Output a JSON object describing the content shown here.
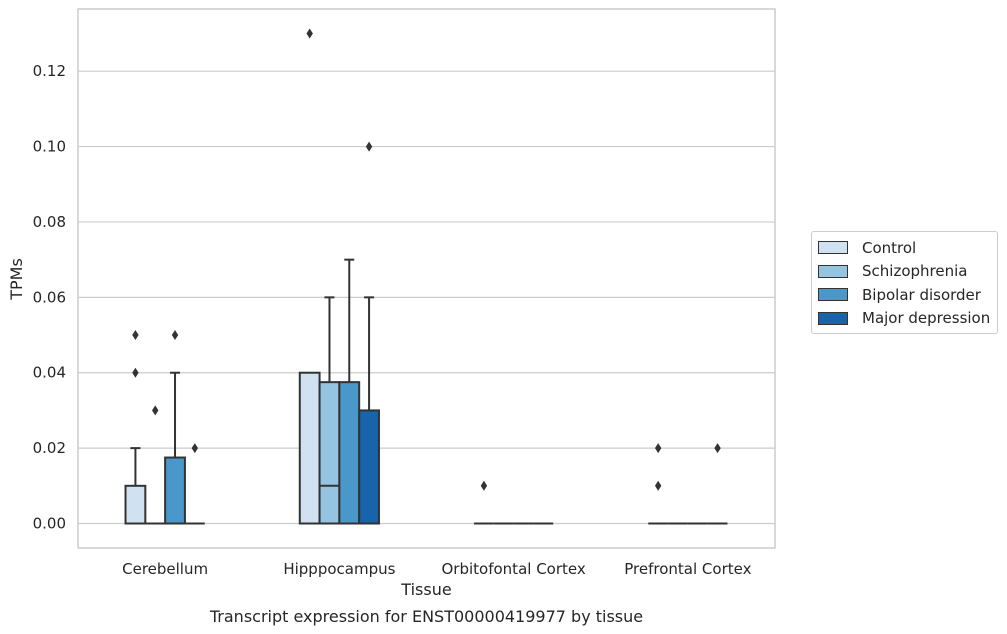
{
  "chart_data": {
    "type": "box",
    "caption": "Transcript expression for ENST00000419977 by tissue",
    "xlabel": "Tissue",
    "ylabel": "TPMs",
    "ylim": [
      -0.0065,
      0.1365
    ],
    "yticks": [
      0.0,
      0.02,
      0.04,
      0.06,
      0.08,
      0.1,
      0.12
    ],
    "ytick_labels": [
      "0.00",
      "0.02",
      "0.04",
      "0.06",
      "0.08",
      "0.10",
      "0.12"
    ],
    "categories": [
      "Cerebellum",
      "Hipppocampus",
      "Orbitofontal Cortex",
      "Prefrontal Cortex"
    ],
    "grid": "horizontal",
    "legend_position": "right",
    "series": [
      {
        "name": "Control",
        "color": "#d0e1f2",
        "boxes": [
          {
            "q1": 0.0,
            "median": 0.0,
            "q3": 0.01,
            "whisker_low": 0.0,
            "whisker_high": 0.02,
            "outliers": [
              0.04,
              0.05
            ]
          },
          {
            "q1": 0.0,
            "median": 0.0,
            "q3": 0.04,
            "whisker_low": 0.0,
            "whisker_high": 0.04,
            "outliers": [
              0.13
            ]
          },
          {
            "q1": 0.0,
            "median": 0.0,
            "q3": 0.0,
            "whisker_low": 0.0,
            "whisker_high": 0.0,
            "outliers": [
              0.01
            ]
          },
          {
            "q1": 0.0,
            "median": 0.0,
            "q3": 0.0,
            "whisker_low": 0.0,
            "whisker_high": 0.0,
            "outliers": [
              0.01,
              0.02
            ]
          }
        ]
      },
      {
        "name": "Schizophrenia",
        "color": "#94c4df",
        "boxes": [
          {
            "q1": 0.0,
            "median": 0.0,
            "q3": 0.0,
            "whisker_low": 0.0,
            "whisker_high": 0.0,
            "outliers": [
              0.03
            ]
          },
          {
            "q1": 0.0,
            "median": 0.01,
            "q3": 0.0375,
            "whisker_low": 0.0,
            "whisker_high": 0.06,
            "outliers": []
          },
          {
            "q1": 0.0,
            "median": 0.0,
            "q3": 0.0,
            "whisker_low": 0.0,
            "whisker_high": 0.0,
            "outliers": []
          },
          {
            "q1": 0.0,
            "median": 0.0,
            "q3": 0.0,
            "whisker_low": 0.0,
            "whisker_high": 0.0,
            "outliers": []
          }
        ]
      },
      {
        "name": "Bipolar disorder",
        "color": "#4a98c9",
        "boxes": [
          {
            "q1": 0.0,
            "median": 0.0,
            "q3": 0.0175,
            "whisker_low": 0.0,
            "whisker_high": 0.04,
            "outliers": [
              0.05
            ]
          },
          {
            "q1": 0.0,
            "median": 0.0,
            "q3": 0.0375,
            "whisker_low": 0.0,
            "whisker_high": 0.07,
            "outliers": []
          },
          {
            "q1": 0.0,
            "median": 0.0,
            "q3": 0.0,
            "whisker_low": 0.0,
            "whisker_high": 0.0,
            "outliers": []
          },
          {
            "q1": 0.0,
            "median": 0.0,
            "q3": 0.0,
            "whisker_low": 0.0,
            "whisker_high": 0.0,
            "outliers": []
          }
        ]
      },
      {
        "name": "Major depression",
        "color": "#1764ab",
        "boxes": [
          {
            "q1": 0.0,
            "median": 0.0,
            "q3": 0.0,
            "whisker_low": 0.0,
            "whisker_high": 0.0,
            "outliers": [
              0.02
            ]
          },
          {
            "q1": 0.0,
            "median": 0.0,
            "q3": 0.03,
            "whisker_low": 0.0,
            "whisker_high": 0.06,
            "outliers": [
              0.1
            ]
          },
          {
            "q1": 0.0,
            "median": 0.0,
            "q3": 0.0,
            "whisker_low": 0.0,
            "whisker_high": 0.0,
            "outliers": []
          },
          {
            "q1": 0.0,
            "median": 0.0,
            "q3": 0.0,
            "whisker_low": 0.0,
            "whisker_high": 0.0,
            "outliers": [
              0.02
            ]
          }
        ]
      }
    ]
  }
}
